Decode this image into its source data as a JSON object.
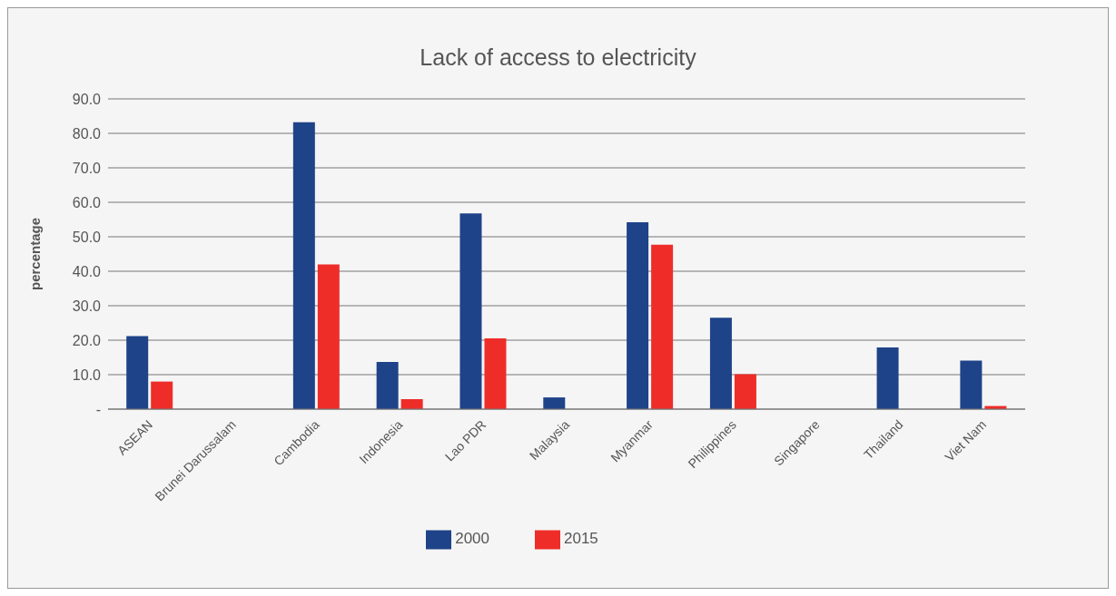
{
  "chart_data": {
    "type": "bar",
    "title": "Lack of access to electricity",
    "ylabel": "percentage",
    "categories": [
      "ASEAN",
      "Brunei Darussalam",
      "Cambodia",
      "Indonesia",
      "Lao PDR",
      "Malaysia",
      "Myanmar",
      "Philippines",
      "Singapore",
      "Thailand",
      "Viet Nam"
    ],
    "series": [
      {
        "name": "2000",
        "color": "#1f4388",
        "values": [
          21.2,
          0,
          83.2,
          13.7,
          56.8,
          3.4,
          54.2,
          26.5,
          0,
          17.9,
          14.1
        ]
      },
      {
        "name": "2015",
        "color": "#ee2d29",
        "values": [
          8.0,
          0,
          42.0,
          2.9,
          20.5,
          0,
          47.7,
          10.1,
          0,
          0,
          0.9
        ]
      }
    ],
    "ylim": [
      0,
      90
    ],
    "yticks": [
      {
        "value": 0,
        "label": "-"
      },
      {
        "value": 10,
        "label": "10.0"
      },
      {
        "value": 20,
        "label": "20.0"
      },
      {
        "value": 30,
        "label": "30.0"
      },
      {
        "value": 40,
        "label": "40.0"
      },
      {
        "value": 50,
        "label": "50.0"
      },
      {
        "value": 60,
        "label": "60.0"
      },
      {
        "value": 70,
        "label": "70.0"
      },
      {
        "value": 80,
        "label": "80.0"
      },
      {
        "value": 90,
        "label": "90.0"
      }
    ],
    "grid": "y",
    "legend": "bottom"
  }
}
